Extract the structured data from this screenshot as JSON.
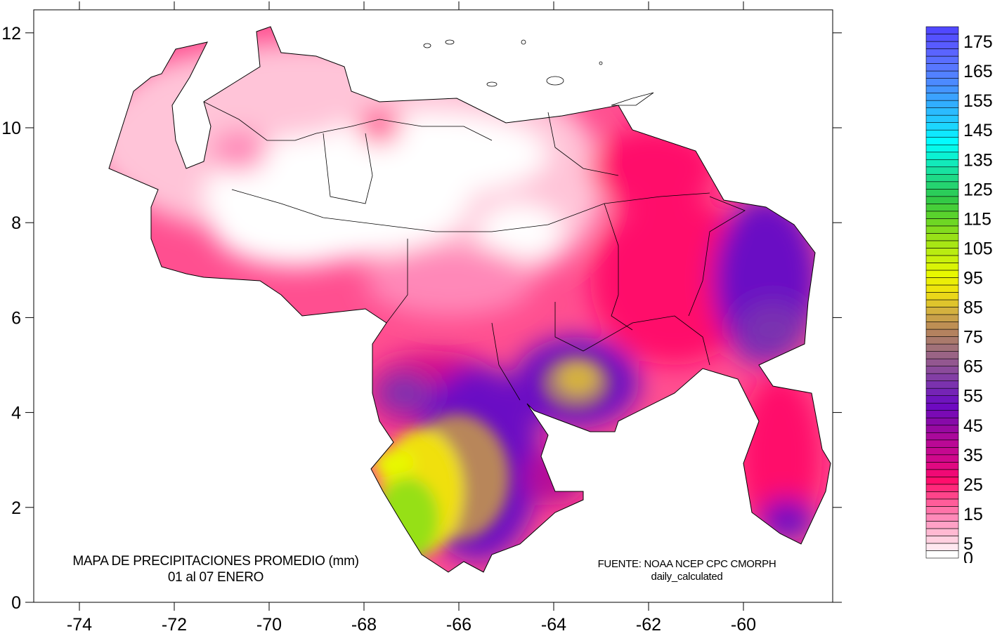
{
  "map": {
    "title": "MAPA DE PRECIPITACIONES PROMEDIO (mm)",
    "subtitle": "01 al 07 ENERO",
    "source": "FUENTE: NOAA NCEP CPC CMORPH",
    "source_detail": "daily_calculated",
    "region": "Venezuela",
    "x_ticks": [
      "-74",
      "-72",
      "-70",
      "-68",
      "-66",
      "-64",
      "-62",
      "-60"
    ],
    "y_ticks": [
      "0",
      "2",
      "4",
      "6",
      "8",
      "10",
      "12"
    ],
    "x_range": [
      -75,
      -58.1
    ],
    "y_range": [
      0,
      12.5
    ]
  },
  "legend": {
    "labels": [
      "0",
      "5",
      "15",
      "25",
      "35",
      "45",
      "55",
      "65",
      "75",
      "85",
      "95",
      "105",
      "115",
      "125",
      "135",
      "145",
      "155",
      "165",
      "175"
    ],
    "min": 0,
    "max": 180,
    "step": 2.5,
    "colors": [
      "#ffffff",
      "#ffc4d8",
      "#ff88b8",
      "#ff4f90",
      "#ff0a6a",
      "#d4088a",
      "#b80896",
      "#8a0aa6",
      "#6a0ac4",
      "#7a30b0",
      "#8e4f98",
      "#a0707a",
      "#b8865a",
      "#d4b040",
      "#f0e010",
      "#e8f800",
      "#c0ee10",
      "#96e018",
      "#60d428",
      "#30c848",
      "#20d880",
      "#10ecc0",
      "#00ffff",
      "#20d0ff",
      "#30b0ff",
      "#4890ff",
      "#5878ff",
      "#5a60ff",
      "#5048ff"
    ]
  }
}
